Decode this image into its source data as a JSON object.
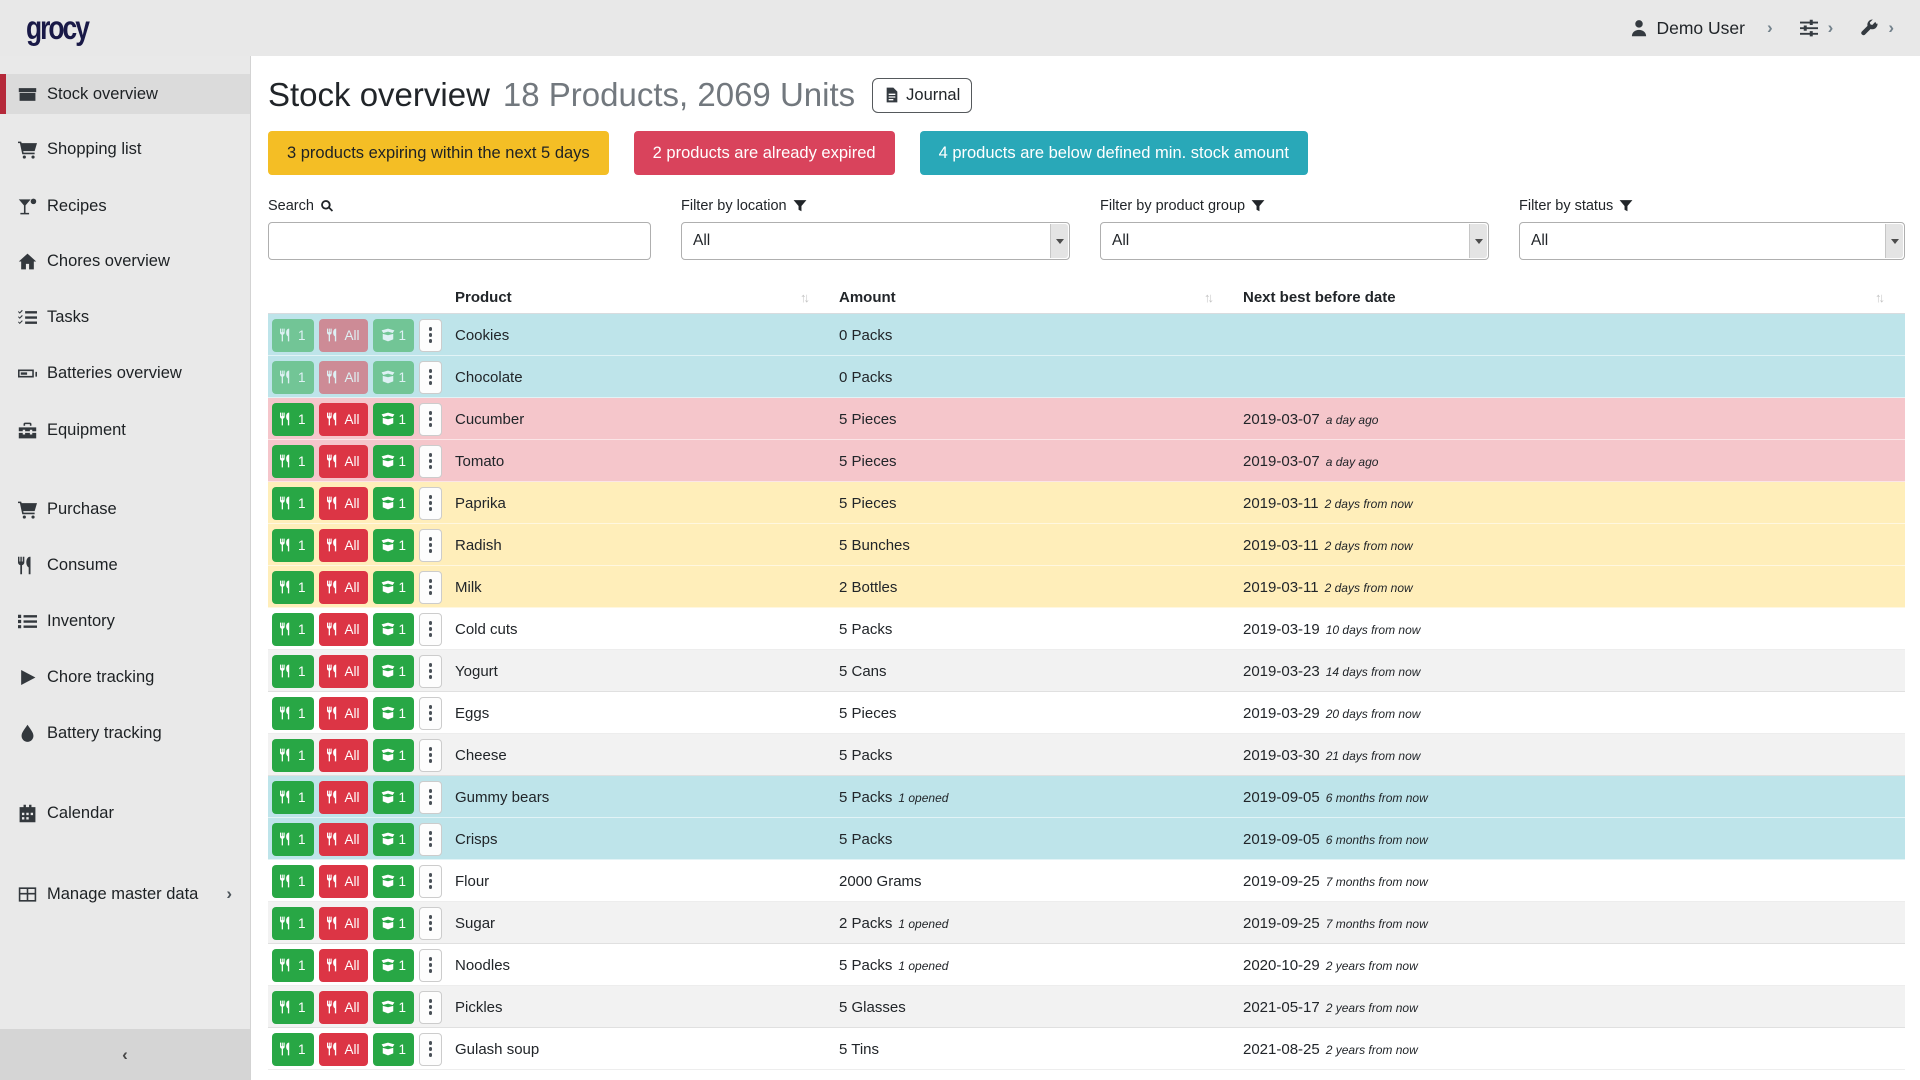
{
  "brand": {
    "logo_text": "grocy"
  },
  "topbar": {
    "user_label": "Demo User"
  },
  "sidebar": {
    "items": [
      {
        "label": "Stock overview",
        "icon": "box",
        "active": true
      },
      {
        "label": "Shopping list",
        "icon": "cart"
      },
      {
        "label": "Recipes",
        "icon": "cocktail"
      },
      {
        "label": "Chores overview",
        "icon": "home"
      },
      {
        "label": "Tasks",
        "icon": "tasks"
      },
      {
        "label": "Batteries overview",
        "icon": "battery"
      },
      {
        "label": "Equipment",
        "icon": "toolbox"
      },
      {
        "label": "Purchase",
        "icon": "cart"
      },
      {
        "label": "Consume",
        "icon": "utensils"
      },
      {
        "label": "Inventory",
        "icon": "list"
      },
      {
        "label": "Chore tracking",
        "icon": "play"
      },
      {
        "label": "Battery tracking",
        "icon": "droplet"
      },
      {
        "label": "Calendar",
        "icon": "calendar"
      },
      {
        "label": "Manage master data",
        "icon": "table",
        "chevron": "›"
      }
    ],
    "collapse_glyph": "‹"
  },
  "header": {
    "title": "Stock overview",
    "subtitle": "18 Products, 2069 Units",
    "journal_label": "Journal"
  },
  "alerts": [
    {
      "text": "3 products expiring within the next 5 days",
      "type": "warning"
    },
    {
      "text": "2 products are already expired",
      "type": "danger"
    },
    {
      "text": "4 products are below defined min. stock amount",
      "type": "info"
    }
  ],
  "filters": {
    "search_label": "Search",
    "search_value": "",
    "location_label": "Filter by location",
    "location_value": "All",
    "group_label": "Filter by product group",
    "group_value": "All",
    "status_label": "Filter by status",
    "status_value": "All"
  },
  "table": {
    "columns": [
      "Product",
      "Amount",
      "Next best before date"
    ],
    "sort_glyph": "↑↓",
    "action_labels": {
      "consume_one": "1",
      "consume_all": "All",
      "open_one": "1"
    },
    "rows": [
      {
        "product": "Cookies",
        "amount": "0 Packs",
        "amount_note": "",
        "date": "",
        "date_note": "",
        "status": "info",
        "disabled": true
      },
      {
        "product": "Chocolate",
        "amount": "0 Packs",
        "amount_note": "",
        "date": "",
        "date_note": "",
        "status": "info",
        "disabled": true
      },
      {
        "product": "Cucumber",
        "amount": "5 Pieces",
        "amount_note": "",
        "date": "2019-03-07",
        "date_note": "a day ago",
        "status": "danger",
        "disabled": false
      },
      {
        "product": "Tomato",
        "amount": "5 Pieces",
        "amount_note": "",
        "date": "2019-03-07",
        "date_note": "a day ago",
        "status": "danger",
        "disabled": false
      },
      {
        "product": "Paprika",
        "amount": "5 Pieces",
        "amount_note": "",
        "date": "2019-03-11",
        "date_note": "2 days from now",
        "status": "warning",
        "disabled": false
      },
      {
        "product": "Radish",
        "amount": "5 Bunches",
        "amount_note": "",
        "date": "2019-03-11",
        "date_note": "2 days from now",
        "status": "warning",
        "disabled": false
      },
      {
        "product": "Milk",
        "amount": "2 Bottles",
        "amount_note": "",
        "date": "2019-03-11",
        "date_note": "2 days from now",
        "status": "warning",
        "disabled": false
      },
      {
        "product": "Cold cuts",
        "amount": "5 Packs",
        "amount_note": "",
        "date": "2019-03-19",
        "date_note": "10 days from now",
        "status": "plain",
        "disabled": false
      },
      {
        "product": "Yogurt",
        "amount": "5 Cans",
        "amount_note": "",
        "date": "2019-03-23",
        "date_note": "14 days from now",
        "status": "plain",
        "disabled": false
      },
      {
        "product": "Eggs",
        "amount": "5 Pieces",
        "amount_note": "",
        "date": "2019-03-29",
        "date_note": "20 days from now",
        "status": "plain",
        "disabled": false
      },
      {
        "product": "Cheese",
        "amount": "5 Packs",
        "amount_note": "",
        "date": "2019-03-30",
        "date_note": "21 days from now",
        "status": "plain",
        "disabled": false
      },
      {
        "product": "Gummy bears",
        "amount": "5 Packs",
        "amount_note": "1 opened",
        "date": "2019-09-05",
        "date_note": "6 months from now",
        "status": "info",
        "disabled": false
      },
      {
        "product": "Crisps",
        "amount": "5 Packs",
        "amount_note": "",
        "date": "2019-09-05",
        "date_note": "6 months from now",
        "status": "info",
        "disabled": false
      },
      {
        "product": "Flour",
        "amount": "2000 Grams",
        "amount_note": "",
        "date": "2019-09-25",
        "date_note": "7 months from now",
        "status": "plain",
        "disabled": false
      },
      {
        "product": "Sugar",
        "amount": "2 Packs",
        "amount_note": "1 opened",
        "date": "2019-09-25",
        "date_note": "7 months from now",
        "status": "plain",
        "disabled": false
      },
      {
        "product": "Noodles",
        "amount": "5 Packs",
        "amount_note": "1 opened",
        "date": "2020-10-29",
        "date_note": "2 years from now",
        "status": "plain",
        "disabled": false
      },
      {
        "product": "Pickles",
        "amount": "5 Glasses",
        "amount_note": "",
        "date": "2021-05-17",
        "date_note": "2 years from now",
        "status": "plain",
        "disabled": false
      },
      {
        "product": "Gulash soup",
        "amount": "5 Tins",
        "amount_note": "",
        "date": "2021-08-25",
        "date_note": "2 years from now",
        "status": "plain",
        "disabled": false
      }
    ]
  },
  "colors": {
    "accent_red": "#b5293a",
    "badge_warning": "#f4be25",
    "badge_danger": "#d9435c",
    "badge_info": "#29a8b8",
    "row_info": "#bee4ea",
    "row_danger": "#f5c6cb",
    "row_warning": "#ffeeba",
    "button_green": "#28a745",
    "button_red": "#dc3545",
    "sidebar_bg": "#e9e9e9"
  }
}
